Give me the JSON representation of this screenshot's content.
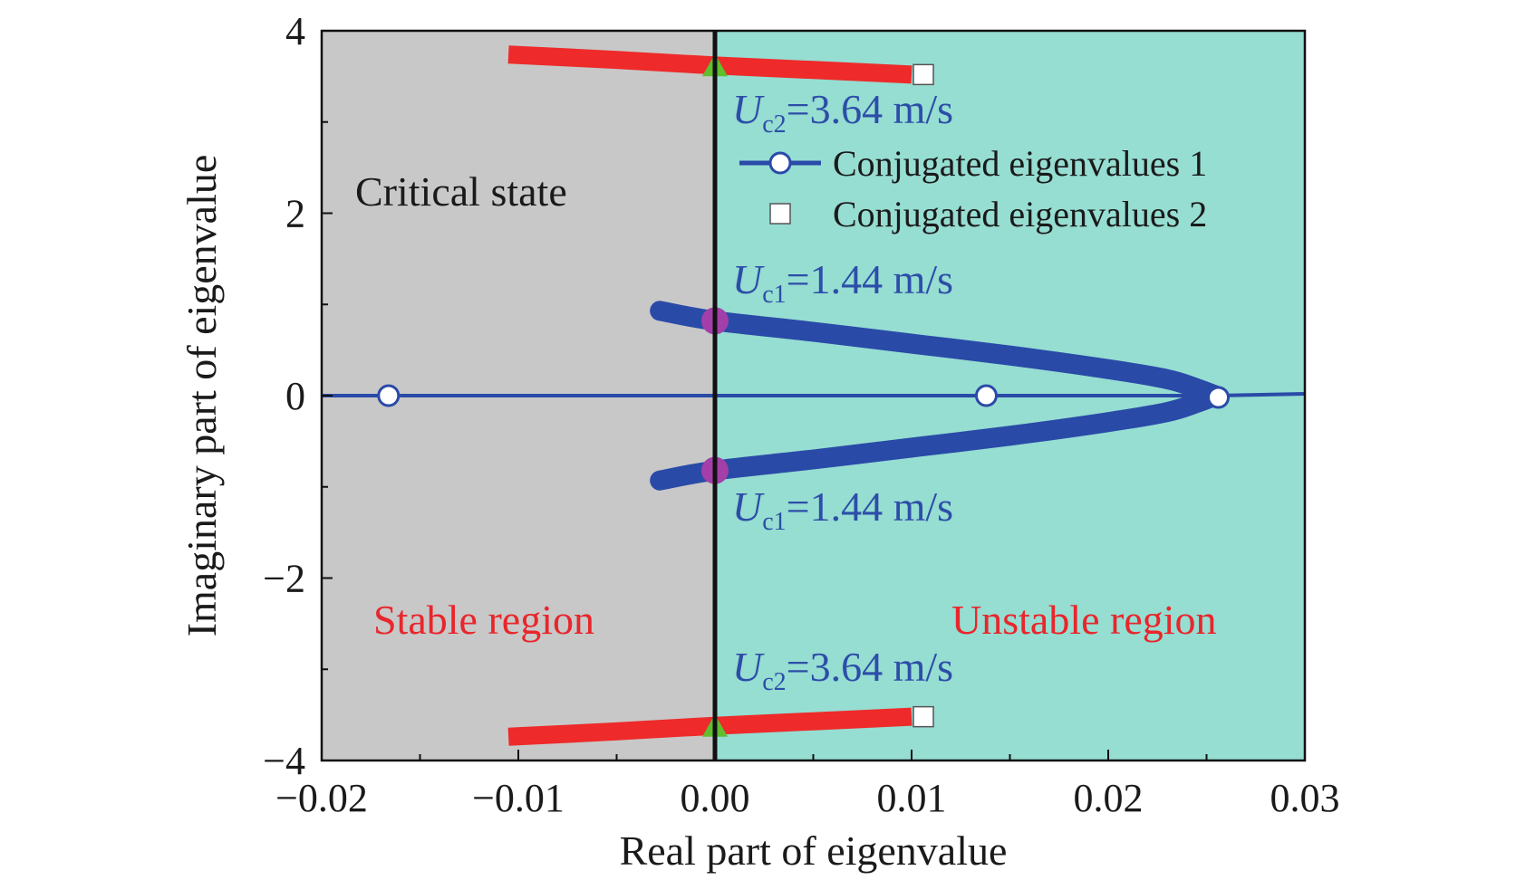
{
  "chart_data": {
    "type": "scatter",
    "xlabel": "Real part of eigenvalue",
    "ylabel": "Imaginary part of eigenvalue",
    "xlim": [
      -0.02,
      0.03
    ],
    "ylim": [
      -4,
      4
    ],
    "xticks": [
      -0.02,
      -0.01,
      0.0,
      0.01,
      0.02,
      0.03
    ],
    "xtick_labels": [
      "−0.02",
      "−0.01",
      "0.00",
      "0.01",
      "0.02",
      "0.03"
    ],
    "yticks": [
      -4,
      -2,
      0,
      2,
      4
    ],
    "ytick_labels": [
      "−4",
      "−2",
      "0",
      "2",
      "4"
    ],
    "regions": [
      {
        "name": "stable",
        "x_range": [
          -0.02,
          0.0
        ],
        "color": "#c8c8c8",
        "label": "Stable region",
        "label_color": "#e8262b"
      },
      {
        "name": "unstable",
        "x_range": [
          0.0,
          0.03
        ],
        "color": "#96ddd2",
        "label": "Unstable region",
        "label_color": "#e8262b"
      }
    ],
    "region_title": "Critical state",
    "series": [
      {
        "name": "Conjugated eigenvalues 1",
        "color": "#2a4aa8",
        "marker": "circle",
        "branches": [
          {
            "x": [
              -0.0028,
              0.0,
              0.005,
              0.01,
              0.015,
              0.02,
              0.023,
              0.0245,
              0.0255
            ],
            "y": [
              0.93,
              0.82,
              0.7,
              0.57,
              0.44,
              0.29,
              0.18,
              0.08,
              0.0
            ]
          },
          {
            "x": [
              -0.0028,
              0.0,
              0.005,
              0.01,
              0.015,
              0.02,
              0.023,
              0.0245,
              0.0255
            ],
            "y": [
              -0.93,
              -0.82,
              -0.7,
              -0.57,
              -0.44,
              -0.29,
              -0.18,
              -0.08,
              0.0
            ]
          }
        ],
        "real_line": {
          "x": [
            -0.02,
            0.0255,
            0.03
          ],
          "y": [
            0.0,
            0.0,
            0.02
          ]
        },
        "open_markers": [
          {
            "x": -0.0166,
            "y": 0.0
          },
          {
            "x": 0.0138,
            "y": 0.0
          },
          {
            "x": 0.0256,
            "y": -0.02
          }
        ]
      },
      {
        "name": "Conjugated eigenvalues 2",
        "color": "#ee2a2a",
        "marker": "square",
        "branches": [
          {
            "x": [
              -0.0105,
              -0.005,
              0.0,
              0.005,
              0.01
            ],
            "y": [
              3.74,
              3.68,
              3.62,
              3.57,
              3.52
            ]
          },
          {
            "x": [
              -0.0105,
              -0.005,
              0.0,
              0.005,
              0.01
            ],
            "y": [
              -3.74,
              -3.68,
              -3.62,
              -3.57,
              -3.52
            ]
          }
        ],
        "end_markers": [
          {
            "x": 0.0106,
            "y": 3.52
          },
          {
            "x": 0.0106,
            "y": -3.52
          }
        ]
      }
    ],
    "critical_points": [
      {
        "x": 0.0,
        "y": 3.62,
        "marker": "triangle",
        "color": "#5fbf2f",
        "label_sym": "U",
        "label_sub": "c2",
        "label_rest": "=3.64 m/s"
      },
      {
        "x": 0.0,
        "y": -3.62,
        "marker": "triangle",
        "color": "#5fbf2f",
        "label_sym": "U",
        "label_sub": "c2",
        "label_rest": "=3.64 m/s"
      },
      {
        "x": 0.0,
        "y": 0.82,
        "marker": "circle",
        "color": "#a33fa8",
        "label_sym": "U",
        "label_sub": "c1",
        "label_rest": "=1.44 m/s"
      },
      {
        "x": 0.0,
        "y": -0.82,
        "marker": "circle",
        "color": "#a33fa8",
        "label_sym": "U",
        "label_sub": "c1",
        "label_rest": "=1.44 m/s"
      }
    ],
    "critical_label_color": "#2c4ea8",
    "legend": {
      "position": "top-right",
      "entries": [
        "Conjugated eigenvalues 1",
        "Conjugated eigenvalues 2"
      ]
    }
  }
}
